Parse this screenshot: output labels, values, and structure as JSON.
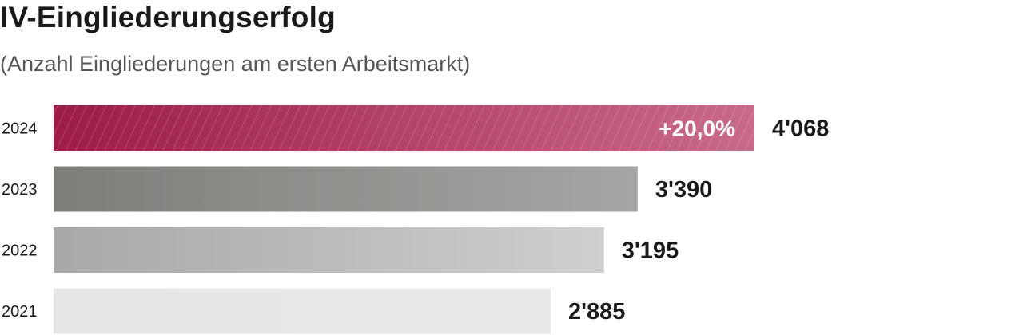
{
  "title": "IV-Eingliederungserfolg",
  "subtitle": "(Anzahl Eingliederungen am ersten Arbeitsmarkt)",
  "colors": {
    "bar_2024_start": "#9c1c45",
    "bar_2024_end": "#c96a8a",
    "bar_2023_start": "#7d7d7a",
    "bar_2023_end": "#a6a6a4",
    "bar_2022_start": "#a8a8a6",
    "bar_2022_end": "#cfcfcd",
    "bar_2021_start": "#e6e6e4",
    "bar_2021_end": "#e9e9e7",
    "highlight_label": "#ffffff",
    "value_label": "#1a1a1a",
    "year_label": "#1a1a1a"
  },
  "chart_data": {
    "type": "bar",
    "orientation": "horizontal",
    "title": "IV-Eingliederungserfolg",
    "subtitle": "(Anzahl Eingliederungen am ersten Arbeitsmarkt)",
    "xlabel": "",
    "ylabel": "",
    "xlim": [
      0,
      4068
    ],
    "grid": false,
    "legend": "none",
    "categories": [
      "2024",
      "2023",
      "2022",
      "2021"
    ],
    "values": [
      4068,
      3390,
      3195,
      2885
    ],
    "value_labels": [
      "4'068",
      "3'390",
      "3'195",
      "2'885"
    ],
    "annotations": [
      {
        "category": "2024",
        "text": "+20,0%"
      }
    ]
  }
}
